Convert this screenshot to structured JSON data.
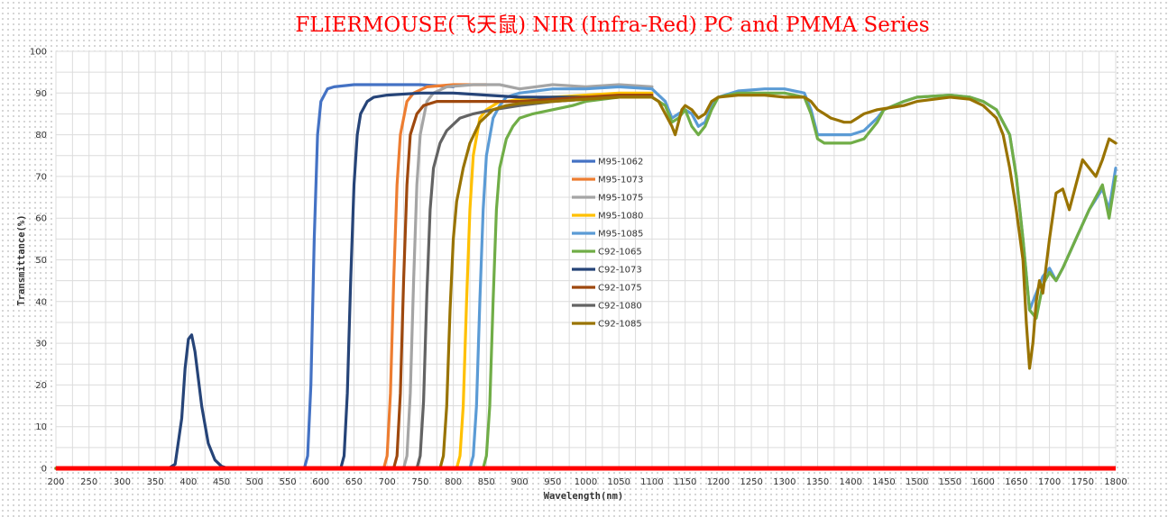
{
  "chart_data": {
    "type": "line",
    "title": "FLIERMOUSE(飞天鼠) NIR (Infra-Red) PC and PMMA Series",
    "xlabel": "Wavelength(nm)",
    "ylabel": "Transmittance(%)",
    "xlim": [
      200,
      1800
    ],
    "ylim": [
      0,
      100
    ],
    "xticks": [
      "200",
      "250",
      "300",
      "350",
      "400",
      "450",
      "500",
      "550",
      "600",
      "650",
      "700",
      "750",
      "800",
      "850",
      "900",
      "950",
      "1000",
      "1050",
      "1100",
      "1150",
      "1200",
      "1250",
      "1300",
      "1350",
      "1400",
      "1450",
      "1500",
      "1550",
      "1600",
      "1650",
      "1700",
      "1750",
      "1800"
    ],
    "yticks": [
      "0",
      "10",
      "20",
      "30",
      "40",
      "50",
      "60",
      "70",
      "80",
      "90",
      "100"
    ],
    "grid": true,
    "legend_position": "center",
    "baseline": {
      "color": "#ff0000",
      "y": 0
    },
    "series": [
      {
        "name": "M95-1062",
        "color": "#4472c4",
        "x": [
          200,
          575,
          580,
          585,
          590,
          595,
          600,
          610,
          620,
          650,
          700,
          750,
          800
        ],
        "y": [
          0,
          0,
          3,
          20,
          55,
          80,
          88,
          91,
          91.5,
          92,
          92,
          92,
          91.5
        ]
      },
      {
        "name": "M95-1073",
        "color": "#ed7d31",
        "x": [
          200,
          695,
          700,
          705,
          710,
          715,
          720,
          730,
          740,
          760,
          800,
          850
        ],
        "y": [
          0,
          0,
          3,
          18,
          45,
          68,
          80,
          88,
          90,
          91.5,
          92,
          92
        ]
      },
      {
        "name": "M95-1075",
        "color": "#a5a5a5",
        "x": [
          200,
          725,
          730,
          735,
          740,
          745,
          750,
          760,
          770,
          790,
          830,
          870,
          900,
          950,
          1000,
          1050,
          1100
        ],
        "y": [
          0,
          0,
          3,
          18,
          45,
          68,
          80,
          88,
          90,
          91.5,
          92,
          92,
          91,
          92,
          91.5,
          92,
          91.5
        ]
      },
      {
        "name": "M95-1080",
        "color": "#ffc000",
        "x": [
          200,
          805,
          810,
          815,
          820,
          825,
          830,
          840,
          850,
          860,
          870,
          880,
          900,
          950,
          1000,
          1050,
          1100
        ],
        "y": [
          0,
          0,
          3,
          15,
          40,
          62,
          75,
          84,
          86,
          87,
          88,
          88,
          88.5,
          89,
          89.5,
          90,
          90
        ]
      },
      {
        "name": "M95-1085",
        "color": "#5b9bd5",
        "x": [
          200,
          825,
          830,
          835,
          840,
          845,
          850,
          860,
          870,
          880,
          900,
          950,
          1000,
          1050,
          1100,
          1120,
          1130,
          1140,
          1150,
          1160,
          1170,
          1180,
          1190,
          1200,
          1230,
          1270,
          1300,
          1330,
          1340,
          1350,
          1360,
          1370,
          1380,
          1400,
          1420,
          1440,
          1450,
          1480,
          1500,
          1550,
          1580,
          1600,
          1620,
          1640,
          1650,
          1660,
          1670,
          1680,
          1690,
          1700,
          1710,
          1720,
          1740,
          1760,
          1780,
          1790,
          1800
        ],
        "y": [
          0,
          0,
          3,
          15,
          40,
          62,
          75,
          84,
          87,
          89,
          90,
          91,
          91,
          91.5,
          91,
          88,
          84,
          85,
          86,
          85,
          82,
          83,
          87,
          89,
          90.5,
          91,
          91,
          90,
          86,
          80,
          80,
          80,
          80,
          80,
          81,
          84,
          86,
          88,
          89,
          89.5,
          89,
          88,
          86,
          80,
          70,
          55,
          38,
          42,
          46,
          48,
          45,
          48,
          55,
          62,
          67,
          62,
          72
        ]
      },
      {
        "name": "C92-1065",
        "color": "#70ad47",
        "x": [
          200,
          845,
          850,
          855,
          860,
          865,
          870,
          880,
          890,
          900,
          920,
          950,
          980,
          1000,
          1050,
          1100,
          1120,
          1130,
          1140,
          1150,
          1160,
          1170,
          1180,
          1190,
          1200,
          1230,
          1270,
          1300,
          1330,
          1340,
          1350,
          1360,
          1370,
          1380,
          1400,
          1420,
          1440,
          1450,
          1480,
          1500,
          1550,
          1580,
          1600,
          1620,
          1640,
          1650,
          1660,
          1670,
          1680,
          1690,
          1700,
          1710,
          1720,
          1740,
          1760,
          1780,
          1790,
          1800
        ],
        "y": [
          0,
          0,
          3,
          15,
          40,
          62,
          72,
          79,
          82,
          84,
          85,
          86,
          87,
          88,
          89,
          89,
          87,
          83,
          84,
          86,
          82,
          80,
          82,
          86,
          89,
          90,
          90,
          90,
          89,
          85,
          79,
          78,
          78,
          78,
          78,
          79,
          83,
          86,
          88,
          89,
          89.5,
          89,
          88,
          86,
          80,
          70,
          55,
          38,
          36,
          44,
          47,
          45,
          48,
          55,
          62,
          68,
          60,
          70
        ]
      },
      {
        "name": "C92-1073",
        "color": "#264478",
        "x": [
          200,
          370,
          380,
          390,
          395,
          400,
          405,
          410,
          420,
          430,
          440,
          450,
          460,
          470,
          480,
          490,
          500,
          630,
          635,
          640,
          645,
          650,
          655,
          660,
          670,
          680,
          700,
          750,
          800,
          850,
          900,
          950,
          1000,
          1050,
          1100
        ],
        "y": [
          0,
          0,
          1,
          12,
          24,
          31,
          32,
          28,
          15,
          6,
          2,
          0.5,
          0,
          0,
          0,
          0,
          0,
          0,
          3,
          18,
          45,
          68,
          80,
          85,
          88,
          89,
          89.5,
          90,
          90,
          89.5,
          89,
          89,
          89,
          89,
          89
        ]
      },
      {
        "name": "C92-1075",
        "color": "#9e480e",
        "x": [
          200,
          710,
          715,
          720,
          725,
          730,
          735,
          745,
          755,
          775,
          800,
          850,
          900,
          950,
          1000,
          1050,
          1100
        ],
        "y": [
          0,
          0,
          3,
          18,
          45,
          68,
          80,
          85,
          87,
          88,
          88,
          88,
          88,
          88.5,
          89,
          89.5,
          89.5
        ]
      },
      {
        "name": "C92-1080",
        "color": "#636363",
        "x": [
          200,
          745,
          750,
          755,
          760,
          765,
          770,
          780,
          790,
          810,
          830,
          860,
          900,
          950,
          1000,
          1050,
          1100
        ],
        "y": [
          0,
          0,
          3,
          16,
          42,
          62,
          72,
          78,
          81,
          84,
          85,
          86,
          87,
          88,
          88.5,
          89,
          89
        ]
      },
      {
        "name": "C92-1085",
        "color": "#997300",
        "x": [
          200,
          780,
          785,
          790,
          795,
          800,
          805,
          815,
          825,
          840,
          860,
          880,
          900,
          950,
          1000,
          1050,
          1100,
          1110,
          1120,
          1130,
          1135,
          1140,
          1145,
          1150,
          1160,
          1170,
          1180,
          1190,
          1200,
          1230,
          1270,
          1300,
          1320,
          1330,
          1340,
          1350,
          1360,
          1370,
          1380,
          1390,
          1400,
          1410,
          1420,
          1440,
          1460,
          1480,
          1500,
          1550,
          1580,
          1600,
          1620,
          1630,
          1640,
          1650,
          1660,
          1665,
          1670,
          1675,
          1680,
          1685,
          1690,
          1700,
          1710,
          1720,
          1730,
          1740,
          1750,
          1760,
          1770,
          1780,
          1790,
          1800
        ],
        "y": [
          0,
          0,
          3,
          15,
          38,
          55,
          64,
          72,
          78,
          83,
          86,
          87,
          87.5,
          88,
          88.5,
          89,
          89,
          88,
          85,
          82,
          80,
          83,
          86,
          87,
          86,
          84,
          85,
          88,
          89,
          89.5,
          89.5,
          89,
          89,
          89,
          88,
          86,
          85,
          84,
          83.5,
          83,
          83,
          84,
          85,
          86,
          86.5,
          87,
          88,
          89,
          88.5,
          87,
          84,
          80,
          72,
          62,
          50,
          35,
          24,
          30,
          40,
          45,
          42,
          55,
          66,
          67,
          62,
          68,
          74,
          72,
          70,
          74,
          79,
          78
        ]
      }
    ]
  }
}
